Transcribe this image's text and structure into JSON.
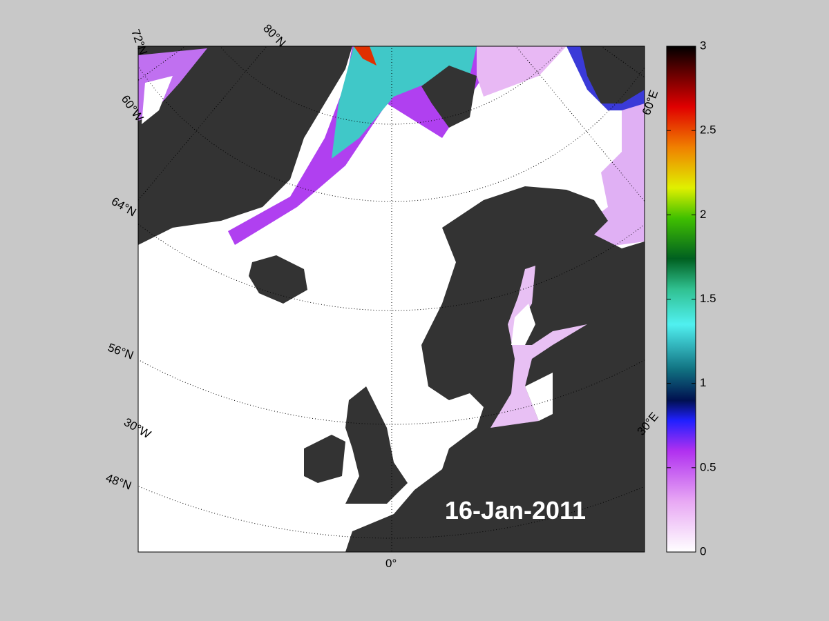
{
  "map": {
    "date": "16-Jan-2011",
    "graticule_labels": [
      "72°N",
      "80°N",
      "60°W",
      "64°N",
      "56°N",
      "30°W",
      "48°N",
      "0°",
      "30°E",
      "60°E"
    ]
  },
  "colorbar": {
    "lim": [
      0,
      3
    ],
    "ticks": [
      0,
      0.5,
      1,
      1.5,
      2,
      2.5,
      3
    ]
  }
}
